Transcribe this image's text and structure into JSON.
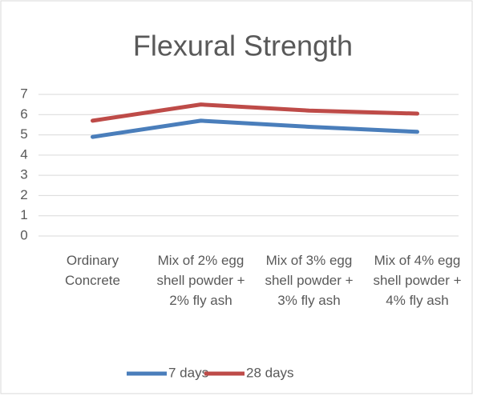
{
  "chart_data": {
    "type": "line",
    "title": "Flexural Strength",
    "categories": [
      "Ordinary Concrete",
      "Mix of 2% egg shell powder + 2% fly ash",
      "Mix of 3% egg shell powder + 3% fly ash",
      "Mix of 4% egg shell powder + 4% fly ash"
    ],
    "series": [
      {
        "name": "7 days",
        "color": "#4a7ebb",
        "values": [
          4.9,
          5.7,
          5.4,
          5.15
        ]
      },
      {
        "name": "28 days",
        "color": "#be4b48",
        "values": [
          5.7,
          6.5,
          6.2,
          6.05
        ]
      }
    ],
    "ylim": [
      0,
      7
    ],
    "yticks": [
      0,
      1,
      2,
      3,
      4,
      5,
      6,
      7
    ],
    "grid": true,
    "legend": "bottom"
  }
}
